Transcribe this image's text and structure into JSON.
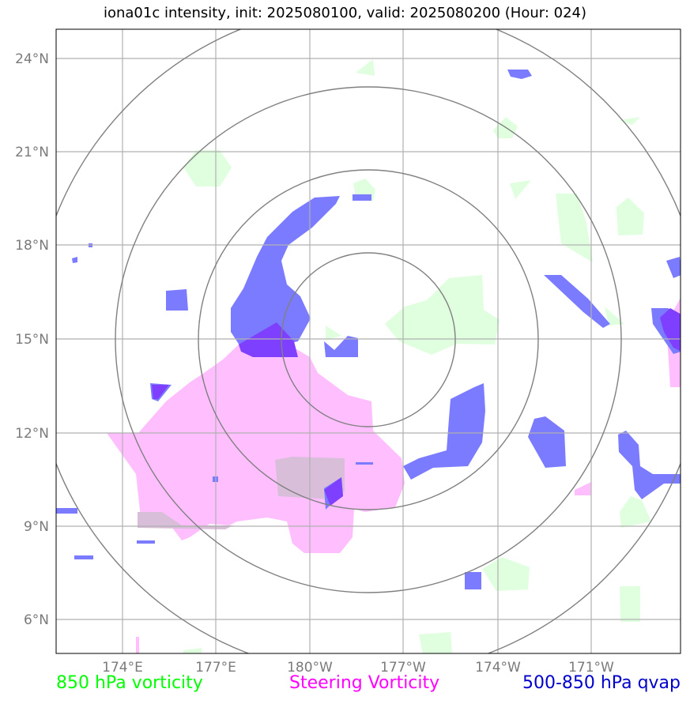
{
  "title": "iona01c intensity, init: 2025080100, valid: 2025080200 (Hour: 024)",
  "lat_ticks": [
    "24°N",
    "21°N",
    "18°N",
    "15°N",
    "12°N",
    "9°N",
    "6°N"
  ],
  "lon_ticks": [
    "174°E",
    "177°E",
    "180°W",
    "177°W",
    "174°W",
    "171°W"
  ],
  "legend": [
    {
      "label": "850 hPa vorticity",
      "color": "#00ff00"
    },
    {
      "label": "Steering Vorticity",
      "color": "#ff00ff"
    },
    {
      "label": "500-850 hPa qvap",
      "color": "#0000cc"
    }
  ],
  "colors": {
    "vort850": "#dfffdf",
    "steering": "#ffbfff",
    "qvap": "#7b7bff",
    "overlap": "#7f3fff",
    "grid": "#b0b0b0",
    "rings": "#808080"
  }
}
